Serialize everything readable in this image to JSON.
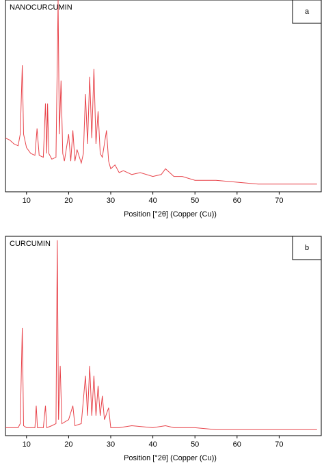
{
  "chart_data": [
    {
      "type": "line",
      "panel_label": "a",
      "xlabel": "Position [°2θ] (Copper (Cu))",
      "xlim": [
        5,
        80
      ],
      "xticks": [
        10,
        20,
        30,
        40,
        50,
        60,
        70
      ],
      "ylim": [
        0,
        100
      ],
      "x": [
        5,
        6,
        7,
        8,
        8.5,
        9,
        9.3,
        10,
        11,
        12,
        12.5,
        13,
        14,
        14.5,
        14.8,
        15,
        15.3,
        16,
        17,
        17.5,
        17.8,
        18.2,
        18.6,
        19,
        20,
        20.5,
        21,
        21.5,
        22,
        23,
        23.5,
        24,
        24.5,
        25,
        25.5,
        26,
        26.5,
        27,
        27.5,
        28,
        29,
        29.5,
        30,
        31,
        32,
        33,
        35,
        37,
        40,
        42,
        43,
        45,
        47,
        50,
        55,
        60,
        65,
        70,
        75,
        79
      ],
      "series": [
        {
          "name": "NANOCURCUMIN",
          "color": "#e8434a",
          "values": [
            28,
            27,
            25,
            24,
            30,
            66,
            30,
            23,
            20,
            19,
            33,
            19,
            18,
            46,
            20,
            46,
            20,
            17,
            18,
            100,
            30,
            58,
            20,
            16,
            30,
            16,
            32,
            16,
            22,
            15,
            20,
            51,
            25,
            60,
            28,
            64,
            25,
            42,
            20,
            18,
            32,
            16,
            12,
            14,
            10,
            11,
            9,
            10,
            8,
            9,
            12,
            8,
            8,
            6,
            6,
            5,
            4,
            4,
            4,
            4
          ]
        }
      ]
    },
    {
      "type": "line",
      "panel_label": "b",
      "xlabel": "Position [°2θ] (Copper (Cu))",
      "xlim": [
        5,
        80
      ],
      "xticks": [
        10,
        20,
        30,
        40,
        50,
        60,
        70
      ],
      "ylim": [
        0,
        100
      ],
      "x": [
        5,
        7,
        8,
        8.5,
        9,
        9.3,
        10,
        12,
        12.3,
        12.6,
        14,
        14.5,
        14.8,
        16,
        17,
        17.3,
        17.6,
        18,
        18.4,
        20,
        21,
        21.5,
        23,
        23.5,
        24,
        24.5,
        25,
        25.5,
        26,
        26.5,
        27,
        27.5,
        28,
        28.5,
        29.5,
        30,
        32,
        35,
        40,
        43,
        45,
        50,
        55,
        60,
        70,
        79
      ],
      "series": [
        {
          "name": "CURCUMIN",
          "color": "#e8434a",
          "values": [
            4,
            4,
            4,
            6,
            54,
            5,
            4,
            4,
            15,
            4,
            4,
            15,
            4,
            5,
            6,
            98,
            8,
            35,
            6,
            8,
            15,
            5,
            6,
            18,
            30,
            10,
            35,
            10,
            30,
            10,
            25,
            10,
            20,
            8,
            14,
            4,
            4,
            5,
            4,
            5,
            4,
            4,
            3,
            3,
            3,
            3
          ]
        }
      ]
    }
  ]
}
